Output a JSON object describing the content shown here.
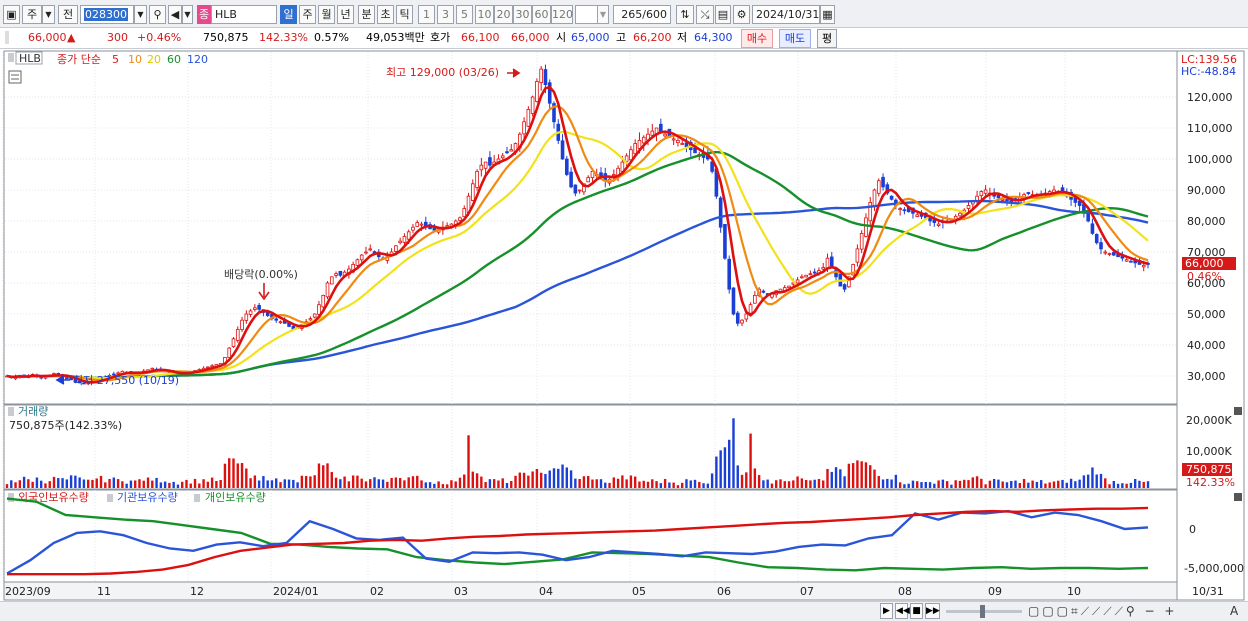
{
  "toolbar": {
    "mode_main": "주",
    "mode_prev": "전",
    "code": "028300",
    "stock_badge": "종",
    "stock_name": "HLB",
    "periods": [
      "일",
      "주",
      "월",
      "년",
      "분",
      "초",
      "틱"
    ],
    "active_period": "일",
    "intervals": [
      "1",
      "3",
      "5",
      "10",
      "20",
      "30",
      "60",
      "120"
    ],
    "count": "265",
    "count_total": "/600",
    "date": "2024/10/31"
  },
  "quote": {
    "price": "66,000",
    "change": "300",
    "change_pct": "+0.46%",
    "volume": "750,875",
    "volume_pct": "142.33%",
    "turnover_pct": "0.57%",
    "amount": "49,053백만",
    "hoga_label": "호가",
    "ask": "66,100",
    "bid": "66,000",
    "open_label": "시",
    "open": "65,000",
    "high_label": "고",
    "high": "66,200",
    "low_label": "저",
    "low": "64,300",
    "buy_label": "매수",
    "sell_label": "매도",
    "avg_label": "평"
  },
  "price_panel": {
    "ticker": "HLB",
    "legend_title": "종가 단순",
    "ma_labels": [
      "5",
      "10",
      "20",
      "60",
      "120"
    ],
    "ma_colors": [
      "#dd1010",
      "#f08a10",
      "#f2e21a",
      "#16902a",
      "#2a55d8"
    ],
    "lc": "LC:139.56",
    "hc": "HC:-48.84",
    "y_labels": [
      "120,000",
      "110,000",
      "100,000",
      "90,000",
      "80,000",
      "70,000",
      "60,000",
      "50,000",
      "40,000",
      "30,000"
    ],
    "annot_high": "최고 129,000 (03/26)",
    "annot_low": "최저 27,550 (10/19)",
    "annot_dividend": "배당락(0.00%)",
    "current_price": "66,000",
    "current_pct": "0.46%"
  },
  "volume_panel": {
    "title": "거래량",
    "subtitle": "750,875주(142.33%)",
    "y_labels": [
      "20,000K",
      "10,000K"
    ],
    "current": "750,875",
    "current_pct": "142.33%"
  },
  "holding_panel": {
    "legends": [
      "외국인보유수량",
      "기관보유수량",
      "개인보유수량"
    ],
    "colors": [
      "#dd1010",
      "#2a55d8",
      "#16902a"
    ],
    "y_labels": [
      "0",
      "-5,000,000"
    ]
  },
  "x_axis": [
    "2023/09",
    "11",
    "12",
    "2024/01",
    "02",
    "03",
    "04",
    "05",
    "06",
    "07",
    "08",
    "09",
    "10",
    "10/31"
  ],
  "chart_data": {
    "type": "candlestick",
    "title": "",
    "ylim": [
      25000,
      135000
    ],
    "ma_periods": [
      5,
      10,
      20,
      60,
      120
    ],
    "close": [
      30000,
      29500,
      29800,
      30200,
      29700,
      30100,
      30500,
      30000,
      29600,
      29900,
      30300,
      30800,
      30200,
      29800,
      29400,
      28800,
      28200,
      27800,
      27550,
      27800,
      28300,
      28800,
      29300,
      29700,
      30200,
      30600,
      31000,
      31500,
      31200,
      30900,
      30700,
      31100,
      31600,
      32000,
      32500,
      32100,
      31700,
      31300,
      31000,
      30800,
      30600,
      30900,
      31200,
      31500,
      31800,
      32100,
      32500,
      32900,
      33300,
      33700,
      34000,
      36000,
      39000,
      42000,
      45000,
      48000,
      50000,
      51000,
      52000,
      51500,
      50500,
      49500,
      48500,
      48000,
      47500,
      47000,
      46000,
      45000,
      45500,
      46500,
      47500,
      48500,
      50000,
      53000,
      56000,
      60000,
      62000,
      63000,
      62500,
      63500,
      64500,
      66000,
      67500,
      69000,
      70000,
      71000,
      69500,
      68500,
      68000,
      68500,
      70000,
      72000,
      73500,
      75000,
      76500,
      78000,
      79500,
      79000,
      78000,
      77500,
      77000,
      77500,
      78000,
      78500,
      79000,
      80000,
      81000,
      84000,
      88000,
      92000,
      96000,
      98000,
      99000,
      98000,
      99000,
      100000,
      101000,
      102000,
      103000,
      105000,
      108000,
      112000,
      116000,
      120000,
      125000,
      129000,
      124000,
      118000,
      112000,
      106000,
      100000,
      95000,
      91000,
      89000,
      90000,
      92000,
      94000,
      96000,
      95000,
      94000,
      93000,
      93500,
      95000,
      97000,
      99000,
      101000,
      103000,
      105000,
      106000,
      107000,
      108000,
      109000,
      110000,
      109000,
      108000,
      107000,
      106500,
      106000,
      105000,
      104000,
      103000,
      102000,
      101500,
      100500,
      100000,
      96000,
      88000,
      78000,
      68000,
      58000,
      50000,
      47000,
      48000,
      50000,
      53000,
      56000,
      58000,
      57000,
      56000,
      56500,
      57500,
      58000,
      58500,
      59000,
      60000,
      61000,
      62000,
      62500,
      63000,
      63500,
      64000,
      65000,
      68000,
      65000,
      62000,
      59000,
      58000,
      62000,
      66000,
      71000,
      76000,
      81000,
      86000,
      90000,
      93000,
      91000,
      89000,
      87000,
      85000,
      84000,
      83500,
      83000,
      82500,
      82000,
      81500,
      81000,
      80000,
      79500,
      79000,
      79500,
      80000,
      80500,
      81500,
      82500,
      83500,
      85000,
      86500,
      88000,
      89500,
      90000,
      89000,
      88000,
      87500,
      87000,
      86500,
      86000,
      86500,
      87500,
      88500,
      89000,
      88500,
      88000,
      88500,
      89000,
      89500,
      90000,
      89500,
      89000,
      88000,
      87000,
      86000,
      85000,
      83000,
      80000,
      76000,
      73000,
      71000,
      70000,
      69500,
      69000,
      68500,
      68000,
      67500,
      67000,
      66500,
      66000,
      65700,
      66000
    ],
    "volume_peaks_k": [
      15500,
      20500,
      16000
    ],
    "holding": {
      "foreign": [
        -5800000,
        -5800000,
        -5800000,
        -5800000,
        -5700000,
        -5500000,
        -5200000,
        -4600000,
        -3600000,
        -2800000,
        -2400000,
        -2000000,
        -1900000,
        -1800000,
        -1500000,
        -1400000,
        -1500000,
        -1200000,
        -1000000,
        -900000,
        -700000,
        -600000,
        -500000,
        -400000,
        -300000,
        -200000,
        0,
        200000,
        400000,
        600000,
        800000,
        900000,
        1100000,
        1300000,
        1500000,
        1800000,
        2000000,
        2200000,
        2300000,
        2200000,
        2400000,
        2500000,
        2600000,
        2600000,
        2700000
      ],
      "institution": [
        -5700000,
        -4000000,
        -1800000,
        -500000,
        -300000,
        -800000,
        -1800000,
        -2500000,
        -2800000,
        -2000000,
        -1700000,
        -2200000,
        -1800000,
        1000000,
        0,
        -1200000,
        -1400000,
        -1100000,
        -3800000,
        -4200000,
        -3000000,
        -3100000,
        -3000000,
        -3300000,
        -4000000,
        -3600000,
        -2800000,
        -3000000,
        -3200000,
        -3500000,
        -3000000,
        -3100000,
        -3200000,
        -2900000,
        -2300000,
        -2000000,
        -2100000,
        -1200000,
        -800000,
        2000000,
        1200000,
        2100000,
        2000000,
        2300000,
        1500000,
        2100000,
        1800000,
        1000000,
        0,
        200000
      ],
      "individual": [
        3900000,
        3500000,
        1800000,
        1500000,
        1200000,
        1000000,
        500000,
        0,
        -500000,
        -1900000,
        -2000000,
        -2300000,
        -2500000,
        -2600000,
        -3600000,
        -4000000,
        -4300000,
        -4500000,
        -4200000,
        -3900000,
        -3000000,
        -3100000,
        -3200000,
        -3400000,
        -3600000,
        -4300000,
        -4900000,
        -5000000,
        -5200000,
        -5300000,
        -5000000,
        -5100000,
        -5200000,
        -5000000,
        -4900000,
        -5100000,
        -5000000,
        -5000000,
        -5100000,
        -5000000
      ]
    }
  }
}
